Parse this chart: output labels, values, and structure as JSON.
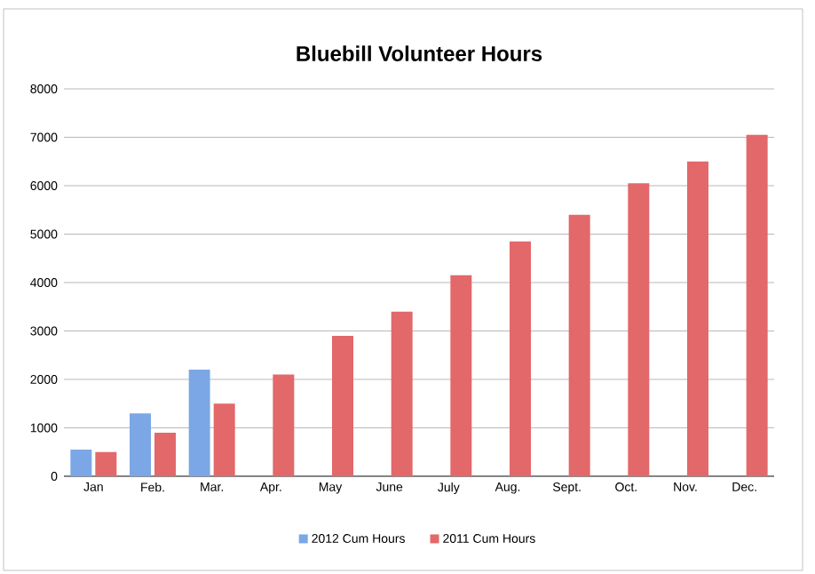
{
  "chart_data": {
    "type": "bar",
    "title": "Bluebill Volunteer Hours",
    "categories": [
      "Jan",
      "Feb.",
      "Mar.",
      "Apr.",
      "May",
      "June",
      "July",
      "Aug.",
      "Sept.",
      "Oct.",
      "Nov.",
      "Dec."
    ],
    "series": [
      {
        "name": "2012 Cum Hours",
        "color": "#7ba7e6",
        "values": [
          550,
          1300,
          2200,
          null,
          null,
          null,
          null,
          null,
          null,
          null,
          null,
          null
        ]
      },
      {
        "name": "2011 Cum Hours",
        "color": "#e2686a",
        "values": [
          500,
          900,
          1500,
          2100,
          2900,
          3400,
          4150,
          4850,
          5400,
          6050,
          6500,
          7050
        ]
      }
    ],
    "ylim": [
      0,
      8000
    ],
    "yticks": [
      0,
      1000,
      2000,
      3000,
      4000,
      5000,
      6000,
      7000,
      8000
    ],
    "grid": "y",
    "legend": "bottom"
  }
}
